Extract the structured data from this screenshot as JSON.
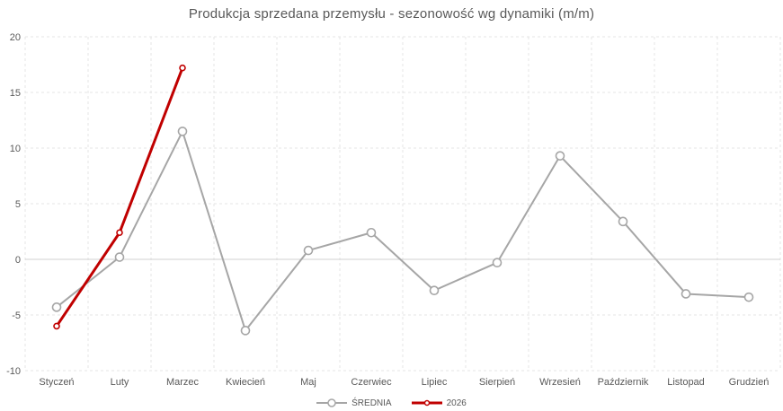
{
  "chart_data": {
    "type": "line",
    "title": "Produkcja sprzedana przemysłu - sezonowość wg dynamiki (m/m)",
    "categories": [
      "Styczeń",
      "Luty",
      "Marzec",
      "Kwiecień",
      "Maj",
      "Czerwiec",
      "Lipiec",
      "Sierpień",
      "Wrzesień",
      "Październik",
      "Listopad",
      "Grudzień"
    ],
    "series": [
      {
        "name": "ŚREDNIA",
        "color": "#a6a6a6",
        "line_width": 2,
        "marker_radius": 4.5,
        "values": [
          -4.3,
          0.2,
          11.5,
          -6.4,
          0.8,
          2.4,
          -2.8,
          -0.3,
          9.3,
          3.4,
          -3.1,
          -3.4
        ]
      },
      {
        "name": "2026",
        "color": "#c00000",
        "line_width": 3,
        "marker_radius": 3,
        "values": [
          -6.0,
          2.4,
          17.2,
          null,
          null,
          null,
          null,
          null,
          null,
          null,
          null,
          null
        ]
      }
    ],
    "y_ticks": [
      20,
      15,
      10,
      5,
      0,
      -5,
      -10
    ],
    "ylim": [
      -10,
      20
    ],
    "xlabel": "",
    "ylabel": "",
    "grid": true,
    "legend_position": "bottom"
  },
  "colors": {
    "gridline": "#e4e4e4",
    "zero_line": "#d2d2d2",
    "title_text": "#595959",
    "tick_text": "#595959"
  }
}
